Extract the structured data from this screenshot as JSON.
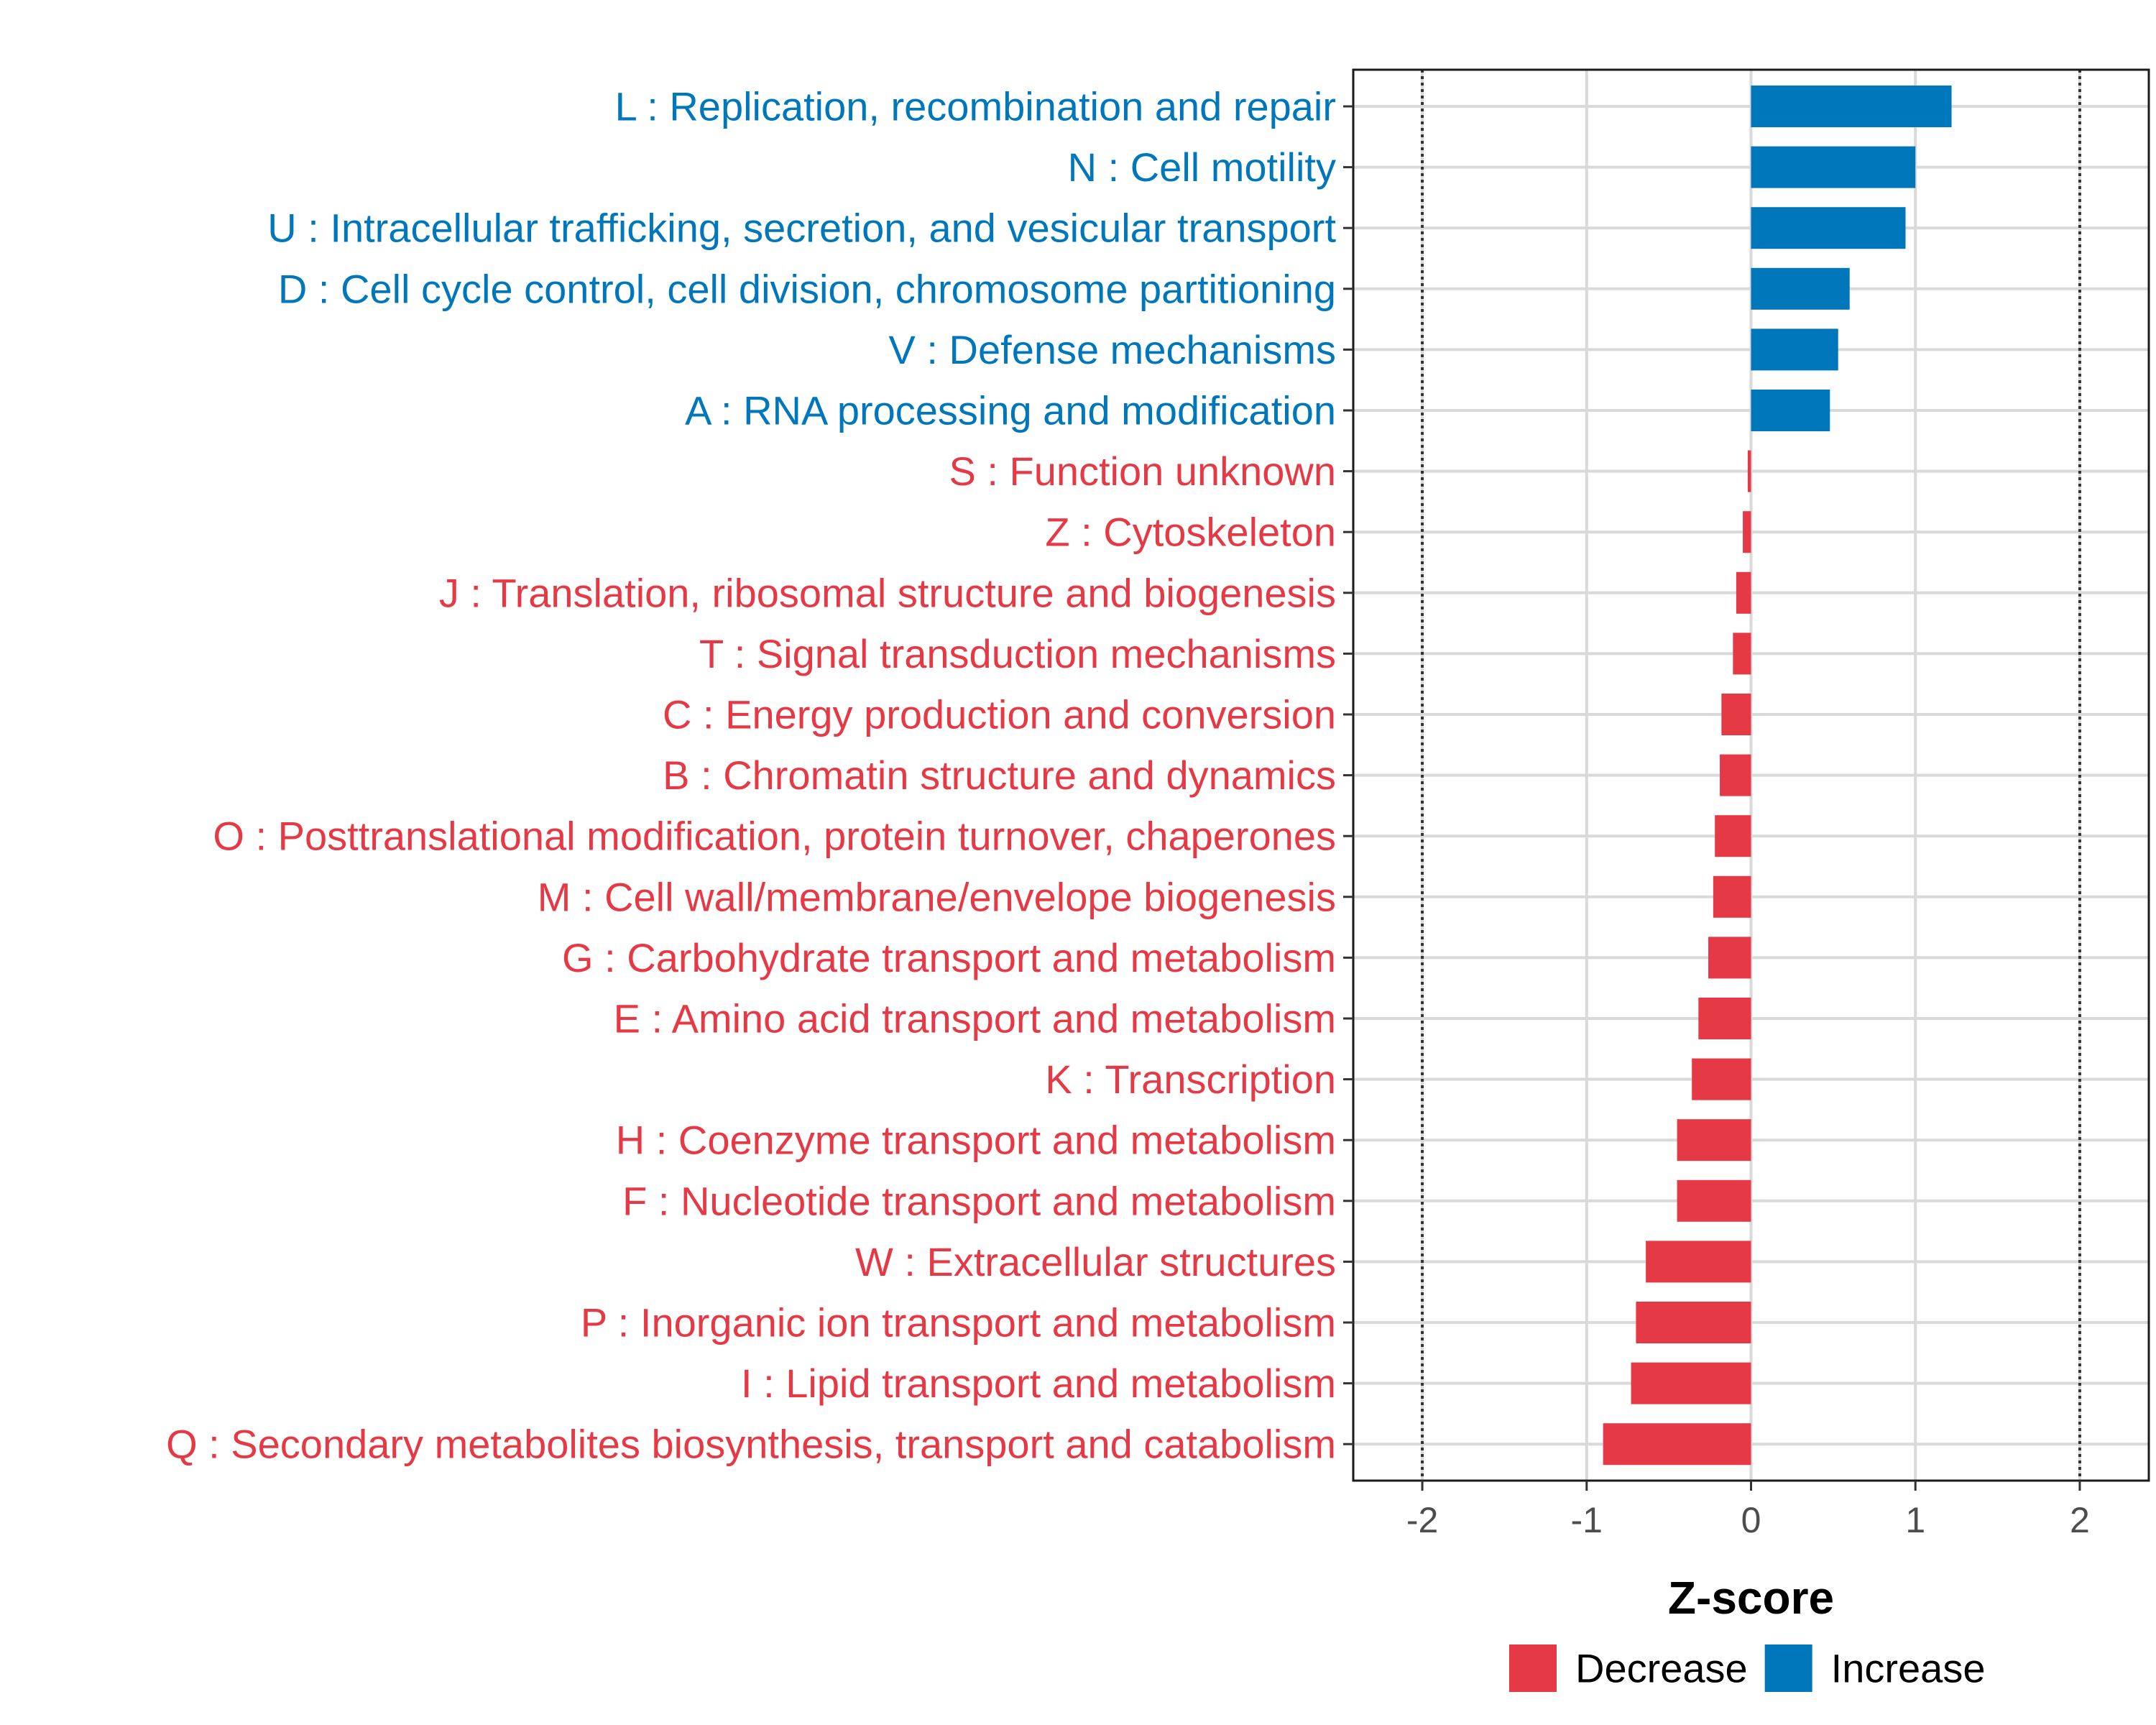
{
  "chart_data": {
    "type": "bar",
    "orientation": "horizontal",
    "title": "",
    "xlabel": "Z-score",
    "ylabel": "",
    "xlim": [
      -2.42,
      2.42
    ],
    "xticks": [
      -2,
      -1,
      0,
      1,
      2
    ],
    "xtick_labels": [
      "-2",
      "-1",
      "0",
      "1",
      "2"
    ],
    "reference_lines": [
      -2,
      2
    ],
    "grid": true,
    "legend_position": "bottom",
    "series": [
      {
        "name": "Decrease",
        "color": "#E63946"
      },
      {
        "name": "Increase",
        "color": "#0077BB"
      }
    ],
    "categories": [
      {
        "label": "L : Replication, recombination and repair",
        "value": 1.22,
        "group": "Increase"
      },
      {
        "label": "N : Cell motility",
        "value": 1.0,
        "group": "Increase"
      },
      {
        "label": "U : Intracellular trafficking, secretion, and vesicular transport",
        "value": 0.94,
        "group": "Increase"
      },
      {
        "label": "D : Cell cycle control, cell division, chromosome partitioning",
        "value": 0.6,
        "group": "Increase"
      },
      {
        "label": "V : Defense mechanisms",
        "value": 0.53,
        "group": "Increase"
      },
      {
        "label": "A : RNA processing and modification",
        "value": 0.48,
        "group": "Increase"
      },
      {
        "label": "S : Function unknown",
        "value": -0.02,
        "group": "Decrease"
      },
      {
        "label": "Z : Cytoskeleton",
        "value": -0.05,
        "group": "Decrease"
      },
      {
        "label": "J : Translation, ribosomal structure and biogenesis",
        "value": -0.09,
        "group": "Decrease"
      },
      {
        "label": "T : Signal transduction mechanisms",
        "value": -0.11,
        "group": "Decrease"
      },
      {
        "label": "C : Energy production and conversion",
        "value": -0.18,
        "group": "Decrease"
      },
      {
        "label": "B : Chromatin structure and dynamics",
        "value": -0.19,
        "group": "Decrease"
      },
      {
        "label": "O : Posttranslational modification, protein turnover, chaperones",
        "value": -0.22,
        "group": "Decrease"
      },
      {
        "label": "M : Cell wall/membrane/envelope biogenesis",
        "value": -0.23,
        "group": "Decrease"
      },
      {
        "label": "G : Carbohydrate transport and metabolism",
        "value": -0.26,
        "group": "Decrease"
      },
      {
        "label": "E : Amino acid transport and metabolism",
        "value": -0.32,
        "group": "Decrease"
      },
      {
        "label": "K : Transcription",
        "value": -0.36,
        "group": "Decrease"
      },
      {
        "label": "H : Coenzyme transport and metabolism",
        "value": -0.45,
        "group": "Decrease"
      },
      {
        "label": "F : Nucleotide transport and metabolism",
        "value": -0.45,
        "group": "Decrease"
      },
      {
        "label": "W : Extracellular structures",
        "value": -0.64,
        "group": "Decrease"
      },
      {
        "label": "P : Inorganic ion transport and metabolism",
        "value": -0.7,
        "group": "Decrease"
      },
      {
        "label": "I : Lipid transport and metabolism",
        "value": -0.73,
        "group": "Decrease"
      },
      {
        "label": "Q : Secondary metabolites biosynthesis, transport and catabolism",
        "value": -0.9,
        "group": "Decrease"
      }
    ]
  }
}
